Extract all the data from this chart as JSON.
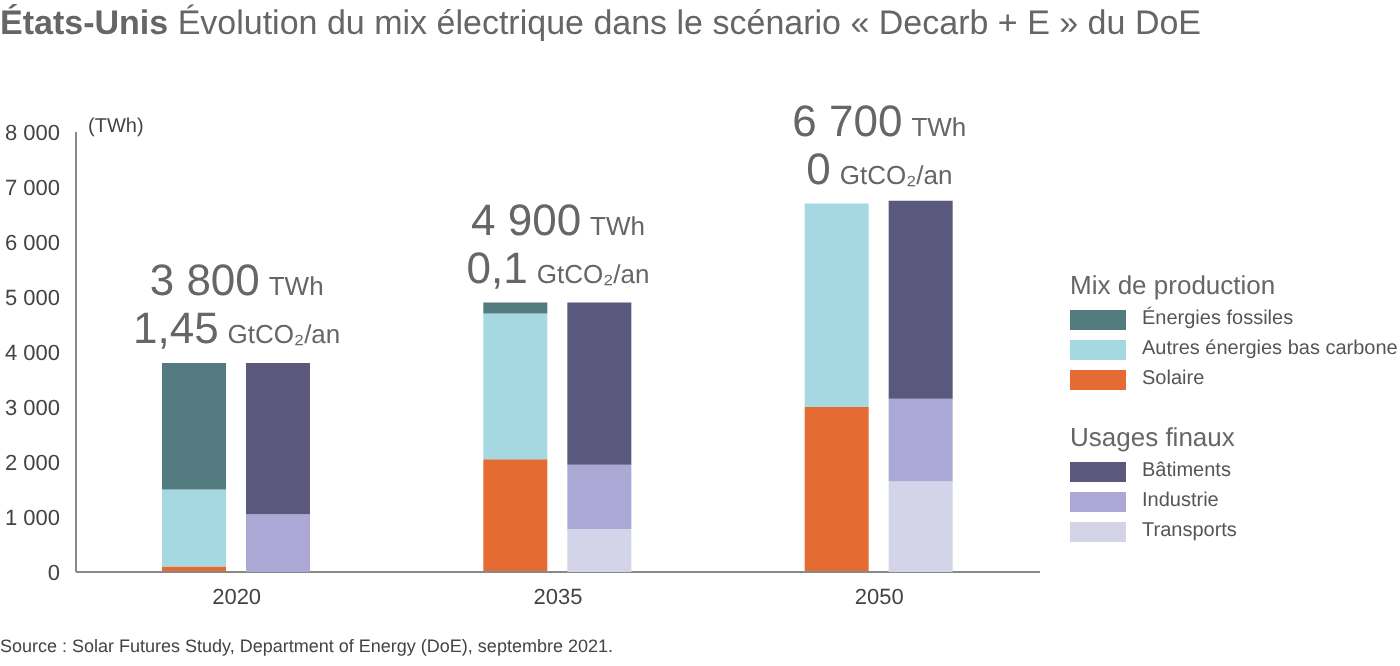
{
  "chart_data": [
    {
      "type": "bar",
      "title": "États-Unis",
      "subtitle": "Évolution du mix électrique dans le scénario « Decarb + E » du DoE",
      "ylabel": "(TWh)",
      "categories": [
        "2020",
        "2035",
        "2050"
      ],
      "stacked": true,
      "legend": "right",
      "legend_title": "Mix de production",
      "series": [
        {
          "name": "Solaire",
          "color": "#e46c32",
          "values": [
            100,
            2050,
            3000
          ]
        },
        {
          "name": "Autres énergies bas carbone",
          "color": "#a6d8e1",
          "values": [
            1400,
            2650,
            3700
          ]
        },
        {
          "name": "Énergies fossiles",
          "color": "#537a7e",
          "values": [
            2300,
            200,
            0
          ]
        }
      ],
      "ylim": [
        0,
        8000
      ],
      "yticks": [
        {
          "value": 0,
          "label": "0"
        },
        {
          "value": 1000,
          "label": "1 000"
        },
        {
          "value": 2000,
          "label": "2 000"
        },
        {
          "value": 3000,
          "label": "3 000"
        },
        {
          "value": 4000,
          "label": "4 000"
        },
        {
          "value": 5000,
          "label": "5 000"
        },
        {
          "value": 6000,
          "label": "6 000"
        },
        {
          "value": 7000,
          "label": "7 000"
        },
        {
          "value": 8000,
          "label": "8 000"
        }
      ],
      "totals": [
        "3 800 TWh",
        "4 900 TWh",
        "6 700 TWh"
      ],
      "annotations": [
        "1,45 GtCO₂/an",
        "0,1 GtCO₂/an",
        "0 GtCO₂/an",
        "Source : Solar Futures Study, Department of Energy (DoE), septembre 2021."
      ]
    },
    {
      "type": "bar",
      "categories": [
        "2020",
        "2035",
        "2050"
      ],
      "stacked": true,
      "legend": "right",
      "legend_title": "Usages finaux",
      "series": [
        {
          "name": "Transports",
          "color": "#d4d4e8",
          "values": [
            0,
            780,
            1650
          ]
        },
        {
          "name": "Industrie",
          "color": "#aba8d6",
          "values": [
            1050,
            1170,
            1500
          ]
        },
        {
          "name": "Bâtiments",
          "color": "#5b587e",
          "values": [
            2750,
            2950,
            3600
          ]
        }
      ],
      "ylim": [
        0,
        8000
      ],
      "tick_labels": false
    }
  ]
}
